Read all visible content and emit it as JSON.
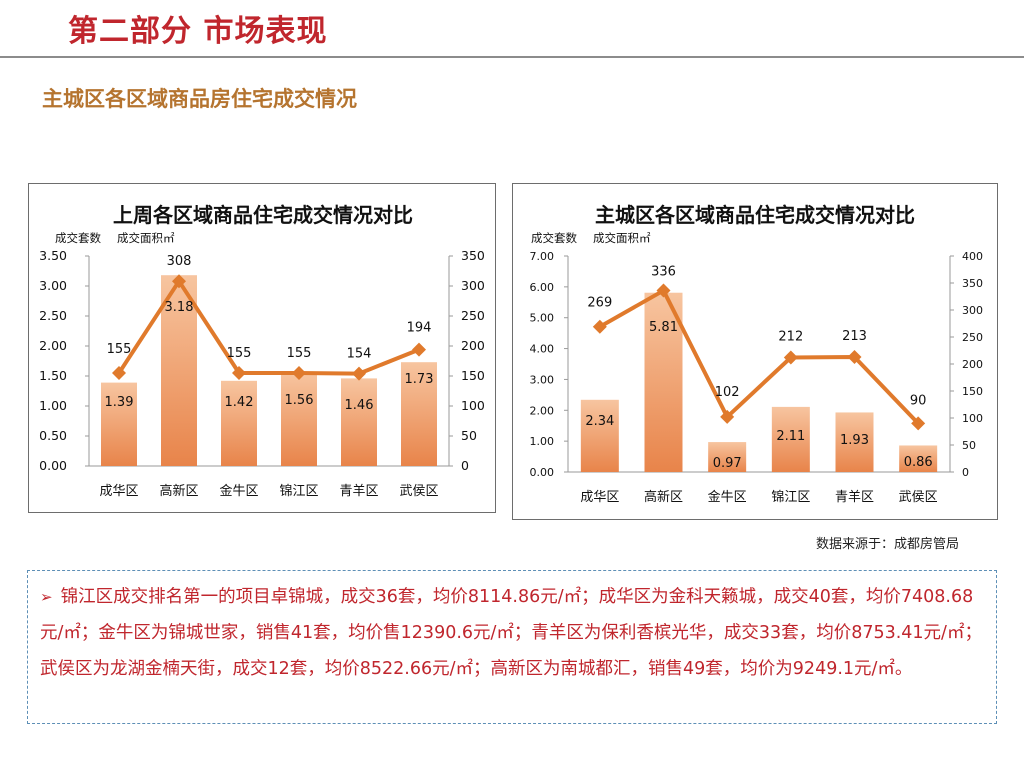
{
  "page": {
    "title": "第二部分 市场表现",
    "section_title": "主城区各区域商品房住宅成交情况",
    "source_note": "数据来源于：成都房管局",
    "summary": "锦江区成交排名第一的项目卓锦城，成交36套，均价8114.86元/㎡；成华区为金科天籁城，成交40套，均价7408.68元/㎡；金牛区为锦城世家，销售41套，均价售12390.6元/㎡；青羊区为保利香槟光华，成交33套，均价8753.41元/㎡；武侯区为龙湖金楠天街，成交12套，均价8522.66元/㎡；高新区为南城都汇，销售49套，均价为9249.1元/㎡。"
  },
  "chart_data": [
    {
      "type": "bar",
      "title": "上周各区域商品住宅成交情况对比",
      "left_axis_label": "成交套数",
      "right_axis_label": "成交面积㎡",
      "categories": [
        "成华区",
        "高新区",
        "金牛区",
        "锦江区",
        "青羊区",
        "武侯区"
      ],
      "series": [
        {
          "kind": "bar",
          "axis": "left",
          "values": [
            1.39,
            3.18,
            1.42,
            1.56,
            1.46,
            1.73
          ],
          "labels": [
            "1.39",
            "3.18",
            "1.42",
            "1.56",
            "1.46",
            "1.73"
          ]
        },
        {
          "kind": "line",
          "axis": "right",
          "values": [
            155,
            308,
            155,
            155,
            154,
            194
          ],
          "labels": [
            "155",
            "308",
            "155",
            "155",
            "154",
            "194"
          ]
        }
      ],
      "ylim_left": [
        0,
        3.5
      ],
      "yticks_left": [
        "0.00",
        "0.50",
        "1.00",
        "1.50",
        "2.00",
        "2.50",
        "3.00",
        "3.50"
      ],
      "ylim_right": [
        0,
        350
      ],
      "yticks_right": [
        "0",
        "50",
        "100",
        "150",
        "200",
        "250",
        "300",
        "350"
      ],
      "grid": false,
      "colors": {
        "bar_top": "#f7c5a0",
        "bar_bottom": "#e8844a",
        "line": "#e07a2c",
        "marker": "#e07a2c"
      }
    },
    {
      "type": "bar",
      "title": "主城区各区域商品住宅成交情况对比",
      "left_axis_label": "成交套数",
      "right_axis_label": "成交面积㎡",
      "categories": [
        "成华区",
        "高新区",
        "金牛区",
        "锦江区",
        "青羊区",
        "武侯区"
      ],
      "series": [
        {
          "kind": "bar",
          "axis": "left",
          "values": [
            2.34,
            5.81,
            0.97,
            2.11,
            1.93,
            0.86
          ],
          "labels": [
            "2.34",
            "5.81",
            "0.97",
            "2.11",
            "1.93",
            "0.86"
          ]
        },
        {
          "kind": "line",
          "axis": "right",
          "values": [
            269,
            336,
            102,
            212,
            213,
            90
          ],
          "labels": [
            "269",
            "336",
            "102",
            "212",
            "213",
            "90"
          ]
        }
      ],
      "ylim_left": [
        0,
        7
      ],
      "yticks_left": [
        "0.00",
        "1.00",
        "2.00",
        "3.00",
        "4.00",
        "5.00",
        "6.00",
        "7.00"
      ],
      "ylim_right": [
        0,
        400
      ],
      "yticks_right": [
        "0",
        "50",
        "100",
        "150",
        "200",
        "250",
        "300",
        "350",
        "400"
      ],
      "grid": false,
      "colors": {
        "bar_top": "#f7c5a0",
        "bar_bottom": "#e8844a",
        "line": "#e07a2c",
        "marker": "#e07a2c"
      }
    }
  ]
}
